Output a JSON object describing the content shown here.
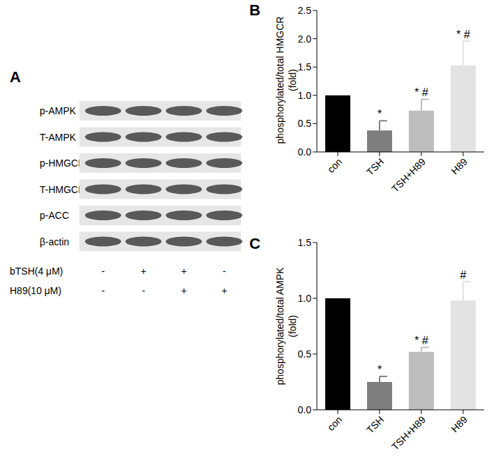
{
  "blot": {
    "panel_label": "A",
    "rows": [
      "p-AMPK",
      "T-AMPK",
      "p-HMGCR",
      "T-HMGCR",
      "p-ACC",
      "β-actin"
    ],
    "treatments": [
      {
        "label": "bTSH(4 μM)",
        "signs": [
          "-",
          "+",
          "+",
          "-"
        ]
      },
      {
        "label": "H89(10 μM)",
        "signs": [
          "-",
          "-",
          "+",
          "+"
        ]
      }
    ]
  },
  "chart_data": [
    {
      "type": "bar",
      "panel_label": "B",
      "y_label": [
        "phosphorylated/total HMGCR",
        "(fold)"
      ],
      "categories": [
        "con",
        "TSH",
        "TSH+H89",
        "H89"
      ],
      "values": [
        1.0,
        0.38,
        0.73,
        1.53
      ],
      "errors": [
        0,
        0.17,
        0.2,
        0.43
      ],
      "significance": [
        null,
        "*",
        "* #",
        "* #"
      ],
      "colors": [
        "#000000",
        "#7f7f7f",
        "#bdbdbd",
        "#e3e3e3"
      ],
      "ylim": [
        0,
        2.5
      ],
      "yticks": [
        {
          "value": 0,
          "label": "0.0"
        },
        0.5,
        {
          "value": 1,
          "label": "1.0"
        },
        1.5,
        {
          "value": 2,
          "label": "2.0"
        },
        2.5
      ],
      "grid": false
    },
    {
      "type": "bar",
      "panel_label": "C",
      "y_label": [
        "phosphorylated/total AMPK",
        "(fold)"
      ],
      "categories": [
        "con",
        "TSH",
        "TSH+H89",
        "H89"
      ],
      "values": [
        1.0,
        0.25,
        0.52,
        0.98
      ],
      "errors": [
        0,
        0.05,
        0.04,
        0.17
      ],
      "significance": [
        null,
        "*",
        "* #",
        "#"
      ],
      "colors": [
        "#000000",
        "#7f7f7f",
        "#bdbdbd",
        "#e3e3e3"
      ],
      "ylim": [
        0,
        1.5
      ],
      "yticks": [
        {
          "value": 0,
          "label": "0.0"
        },
        0.5,
        {
          "value": 1,
          "label": "1.0"
        },
        1.5
      ],
      "grid": false
    }
  ]
}
